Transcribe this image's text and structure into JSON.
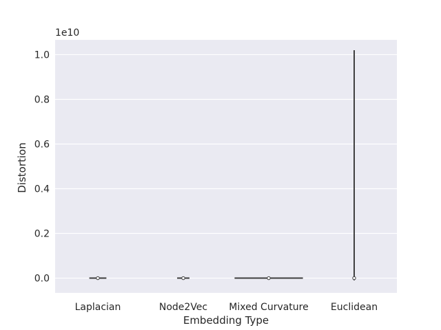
{
  "chart_data": {
    "type": "violin",
    "xlabel": "Embedding Type",
    "ylabel": "Distortion",
    "y_offset_text": "1e10",
    "y_scale_factor": 10000000000,
    "categories": [
      "Laplacian",
      "Node2Vec",
      "Mixed Curvature",
      "Euclidean"
    ],
    "yticks": [
      0.0,
      0.2,
      0.4,
      0.6,
      0.8,
      1.0
    ],
    "ytick_labels": [
      "0.0",
      "0.2",
      "0.4",
      "0.6",
      "0.8",
      "1.0"
    ],
    "ylim": [
      -0.066,
      1.066
    ],
    "grid": true,
    "distributions": [
      {
        "category": "Laplacian",
        "min": 0.0,
        "max": 0.0,
        "median": 0.0,
        "relative_width": 0.25
      },
      {
        "category": "Node2Vec",
        "min": 0.0,
        "max": 0.0,
        "median": 0.0,
        "relative_width": 0.18
      },
      {
        "category": "Mixed Curvature",
        "min": 0.0,
        "max": 0.0,
        "median": 0.0,
        "relative_width": 1.0
      },
      {
        "category": "Euclidean",
        "min": -0.01,
        "max": 1.02,
        "median": 0.0,
        "relative_width": 0.02
      }
    ],
    "colors": {
      "plot_background": "#eaeaf2",
      "grid": "#ffffff",
      "violin_line": "#3f3f3f",
      "median_fill": "#ffffff"
    }
  }
}
